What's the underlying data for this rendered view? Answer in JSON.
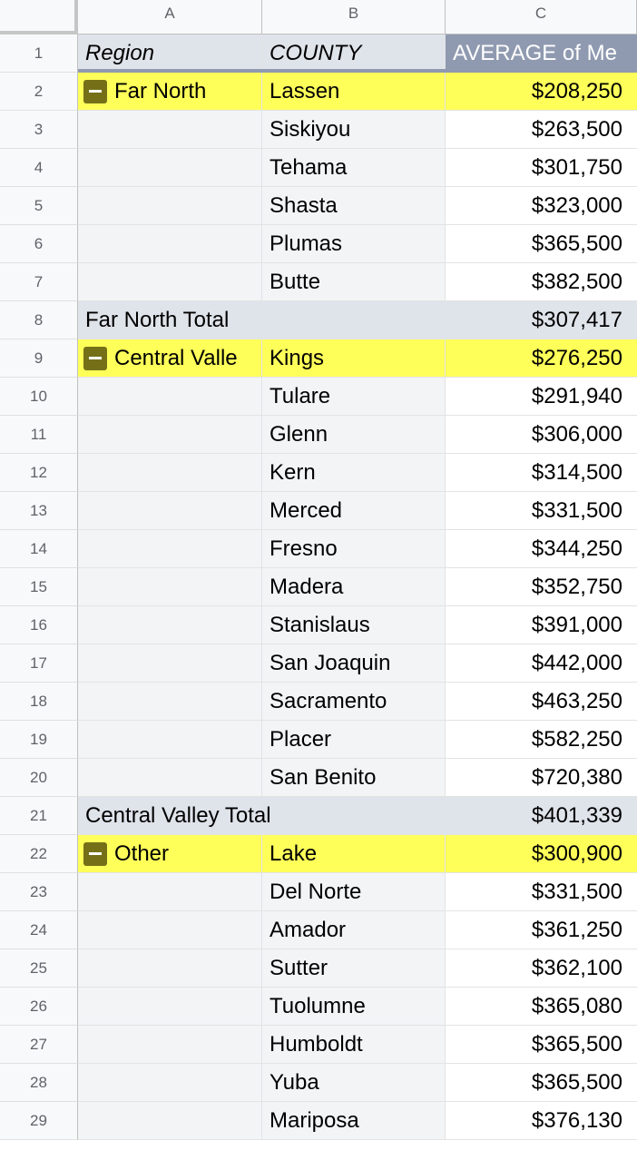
{
  "columns": [
    "A",
    "B",
    "C"
  ],
  "header": {
    "row_number": "1",
    "region": "Region",
    "county": "COUNTY",
    "value": "AVERAGE of Me"
  },
  "rows": [
    {
      "num": "2",
      "region": "Far North",
      "county": "Lassen",
      "value": "$208,250",
      "type": "group-start"
    },
    {
      "num": "3",
      "region": "",
      "county": "Siskiyou",
      "value": "$263,500",
      "type": "normal"
    },
    {
      "num": "4",
      "region": "",
      "county": "Tehama",
      "value": "$301,750",
      "type": "normal"
    },
    {
      "num": "5",
      "region": "",
      "county": "Shasta",
      "value": "$323,000",
      "type": "normal"
    },
    {
      "num": "6",
      "region": "",
      "county": "Plumas",
      "value": "$365,500",
      "type": "normal"
    },
    {
      "num": "7",
      "region": "",
      "county": "Butte",
      "value": "$382,500",
      "type": "normal"
    },
    {
      "num": "8",
      "region": "Far North Total",
      "county": "",
      "value": "$307,417",
      "type": "total"
    },
    {
      "num": "9",
      "region": "Central Valle",
      "county": "Kings",
      "value": "$276,250",
      "type": "group-start"
    },
    {
      "num": "10",
      "region": "",
      "county": "Tulare",
      "value": "$291,940",
      "type": "normal"
    },
    {
      "num": "11",
      "region": "",
      "county": "Glenn",
      "value": "$306,000",
      "type": "normal"
    },
    {
      "num": "12",
      "region": "",
      "county": "Kern",
      "value": "$314,500",
      "type": "normal"
    },
    {
      "num": "13",
      "region": "",
      "county": "Merced",
      "value": "$331,500",
      "type": "normal"
    },
    {
      "num": "14",
      "region": "",
      "county": "Fresno",
      "value": "$344,250",
      "type": "normal"
    },
    {
      "num": "15",
      "region": "",
      "county": "Madera",
      "value": "$352,750",
      "type": "normal"
    },
    {
      "num": "16",
      "region": "",
      "county": "Stanislaus",
      "value": "$391,000",
      "type": "normal"
    },
    {
      "num": "17",
      "region": "",
      "county": "San Joaquin",
      "value": "$442,000",
      "type": "normal"
    },
    {
      "num": "18",
      "region": "",
      "county": "Sacramento",
      "value": "$463,250",
      "type": "normal"
    },
    {
      "num": "19",
      "region": "",
      "county": "Placer",
      "value": "$582,250",
      "type": "normal"
    },
    {
      "num": "20",
      "region": "",
      "county": "San Benito",
      "value": "$720,380",
      "type": "normal"
    },
    {
      "num": "21",
      "region": "Central Valley Total",
      "county": "",
      "value": "$401,339",
      "type": "total"
    },
    {
      "num": "22",
      "region": "Other",
      "county": "Lake",
      "value": "$300,900",
      "type": "group-start"
    },
    {
      "num": "23",
      "region": "",
      "county": "Del Norte",
      "value": "$331,500",
      "type": "normal"
    },
    {
      "num": "24",
      "region": "",
      "county": "Amador",
      "value": "$361,250",
      "type": "normal"
    },
    {
      "num": "25",
      "region": "",
      "county": "Sutter",
      "value": "$362,100",
      "type": "normal"
    },
    {
      "num": "26",
      "region": "",
      "county": "Tuolumne",
      "value": "$365,080",
      "type": "normal"
    },
    {
      "num": "27",
      "region": "",
      "county": "Humboldt",
      "value": "$365,500",
      "type": "normal"
    },
    {
      "num": "28",
      "region": "",
      "county": "Yuba",
      "value": "$365,500",
      "type": "normal"
    },
    {
      "num": "29",
      "region": "",
      "county": "Mariposa",
      "value": "$376,130",
      "type": "normal"
    }
  ],
  "colors": {
    "highlight": "#ffff5a",
    "total_row": "#dfe3ea",
    "header_value": "#8f9ab0",
    "collapse_button": "#757018"
  },
  "icons": {
    "collapse": "minus-collapse-icon"
  }
}
